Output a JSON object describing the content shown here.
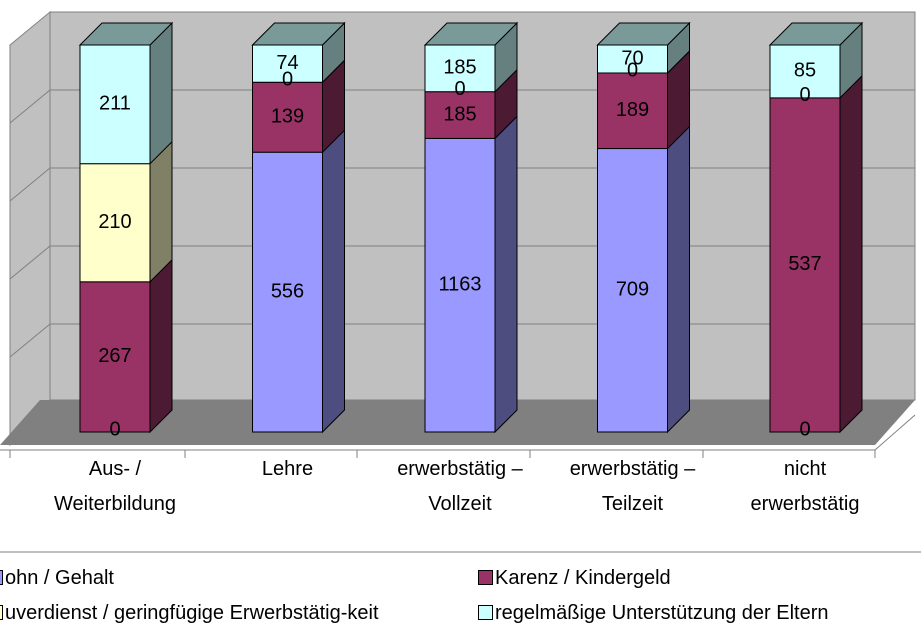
{
  "chart_data": {
    "type": "bar3d_stacked100",
    "categories": [
      "Aus- /\nWeiterbildung",
      "Lehre",
      "erwerbstätig –\nVollzeit",
      "erwerbstätig –\nTeilzeit",
      "nicht\nerwerbstätig"
    ],
    "series": [
      {
        "name": "ohn / Gehalt",
        "color": "#9999ff",
        "values": [
          0,
          556,
          1163,
          709,
          0
        ]
      },
      {
        "name": "Karenz / Kindergeld",
        "color": "#993366",
        "values": [
          267,
          139,
          185,
          189,
          537
        ]
      },
      {
        "name": "uverdienst / geringfügige Erwerbstätig-keit",
        "color": "#ffffcc",
        "values": [
          210,
          0,
          0,
          0,
          0
        ]
      },
      {
        "name": "regelmäßige Unterstützung der Eltern",
        "color": "#ccffff",
        "values": [
          211,
          74,
          185,
          70,
          85
        ]
      }
    ]
  }
}
